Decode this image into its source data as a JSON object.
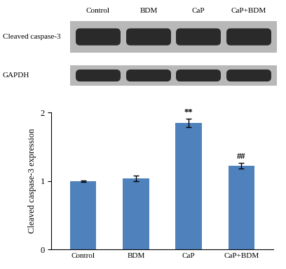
{
  "chart_data": {
    "type": "bar",
    "categories": [
      "Control",
      "BDM",
      "CaP",
      "CaP+BDM"
    ],
    "values": [
      1.0,
      1.04,
      1.85,
      1.22
    ],
    "errors": [
      0.01,
      0.04,
      0.06,
      0.04
    ],
    "color": "#4f81bd",
    "y_label": "Cleaved caspase-3 expression",
    "ylim": [
      0,
      2
    ],
    "yticks": [
      0,
      1,
      2
    ],
    "grid": false,
    "annotations": [
      {
        "category": "CaP",
        "text": "**"
      },
      {
        "category": "CaP+BDM",
        "text": "##"
      }
    ]
  },
  "blot": {
    "columns": [
      "Control",
      "BDM",
      "CaP",
      "CaP+BDM"
    ],
    "rows": [
      "Cleaved caspase-3",
      "GAPDH"
    ]
  }
}
